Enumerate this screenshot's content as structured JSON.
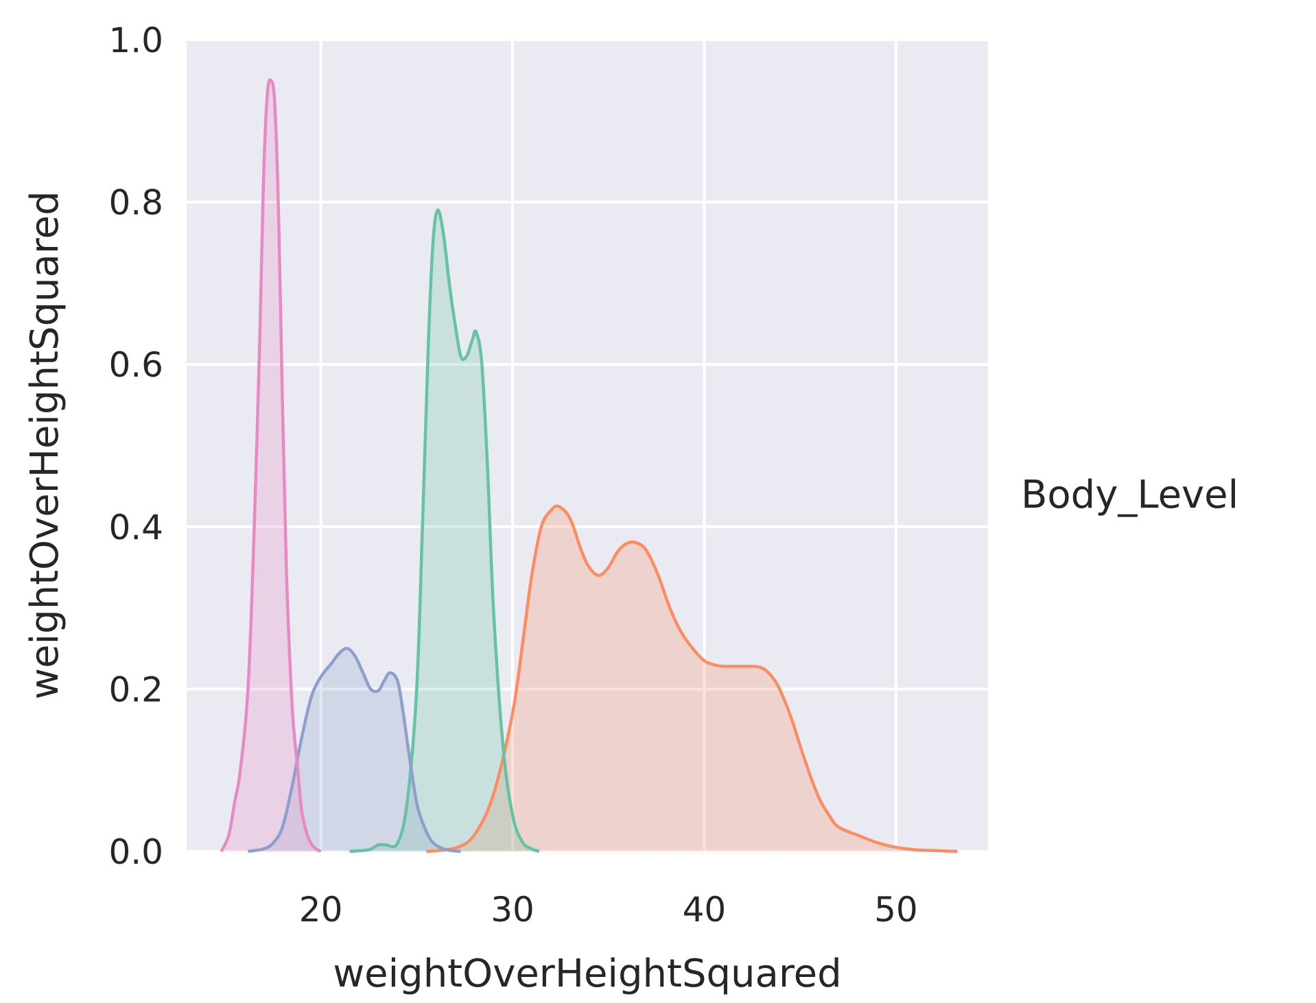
{
  "chart_data": {
    "type": "area",
    "title": "",
    "xlabel": "weightOverHeightSquared",
    "ylabel": "weightOverHeightSquared",
    "xlim": [
      13.0,
      54.8
    ],
    "ylim": [
      0,
      1.0
    ],
    "xticks": [
      20,
      30,
      40,
      50
    ],
    "yticks": [
      0.0,
      0.2,
      0.4,
      0.6,
      0.8,
      1.0
    ],
    "ytick_labels": [
      "0.0",
      "0.2",
      "0.4",
      "0.6",
      "0.8",
      "1.0"
    ],
    "grid": true,
    "legend": {
      "title": "Body_Level",
      "placement": "right"
    },
    "series": [
      {
        "color": "#fc8d62",
        "x": [
          25.5,
          27.0,
          28.0,
          29.0,
          30.0,
          30.6,
          31.0,
          31.5,
          32.0,
          32.4,
          33.0,
          33.6,
          34.0,
          34.5,
          35.0,
          35.5,
          36.0,
          36.5,
          37.0,
          37.6,
          38.2,
          38.8,
          39.4,
          40.0,
          40.5,
          41.0,
          42.0,
          43.0,
          43.7,
          44.2,
          44.6,
          45.0,
          45.5,
          46.0,
          46.5,
          47.0,
          48.0,
          49.0,
          50.0,
          51.0,
          52.0,
          53.2
        ],
        "y": [
          0.0,
          0.004,
          0.02,
          0.07,
          0.17,
          0.27,
          0.34,
          0.4,
          0.42,
          0.425,
          0.41,
          0.37,
          0.35,
          0.34,
          0.35,
          0.37,
          0.38,
          0.38,
          0.37,
          0.34,
          0.3,
          0.27,
          0.25,
          0.235,
          0.23,
          0.228,
          0.228,
          0.226,
          0.21,
          0.185,
          0.16,
          0.13,
          0.095,
          0.065,
          0.045,
          0.03,
          0.02,
          0.011,
          0.005,
          0.002,
          0.001,
          0.0
        ]
      },
      {
        "color": "#66c2a5",
        "x": [
          21.5,
          22.5,
          23.0,
          23.4,
          24.0,
          24.5,
          25.0,
          25.3,
          25.6,
          25.85,
          26.1,
          26.4,
          26.7,
          27.0,
          27.3,
          27.6,
          27.9,
          28.1,
          28.4,
          28.7,
          29.0,
          29.5,
          30.0,
          30.5,
          31.0,
          31.4
        ],
        "y": [
          0.0,
          0.002,
          0.008,
          0.008,
          0.01,
          0.06,
          0.2,
          0.4,
          0.62,
          0.75,
          0.79,
          0.76,
          0.7,
          0.65,
          0.61,
          0.61,
          0.63,
          0.64,
          0.6,
          0.47,
          0.3,
          0.13,
          0.045,
          0.012,
          0.003,
          0.0
        ]
      },
      {
        "color": "#8da0cb",
        "x": [
          16.2,
          17.0,
          17.5,
          18.0,
          18.5,
          19.0,
          19.5,
          20.0,
          20.5,
          21.0,
          21.4,
          21.8,
          22.2,
          22.6,
          23.0,
          23.3,
          23.6,
          24.0,
          24.3,
          24.6,
          25.0,
          25.4,
          25.8,
          26.3,
          26.8,
          27.3
        ],
        "y": [
          0.0,
          0.003,
          0.01,
          0.03,
          0.08,
          0.14,
          0.19,
          0.215,
          0.23,
          0.245,
          0.25,
          0.24,
          0.22,
          0.2,
          0.198,
          0.21,
          0.22,
          0.21,
          0.17,
          0.12,
          0.06,
          0.03,
          0.012,
          0.004,
          0.001,
          0.0
        ]
      },
      {
        "color": "#e78ac3",
        "x": [
          14.8,
          15.2,
          15.5,
          15.8,
          16.2,
          16.5,
          16.8,
          17.0,
          17.2,
          17.4,
          17.6,
          17.8,
          18.0,
          18.2,
          18.5,
          18.8,
          19.0,
          19.3,
          19.6,
          20.0
        ],
        "y": [
          0.0,
          0.02,
          0.06,
          0.1,
          0.2,
          0.38,
          0.62,
          0.82,
          0.93,
          0.95,
          0.92,
          0.78,
          0.55,
          0.35,
          0.18,
          0.1,
          0.05,
          0.02,
          0.006,
          0.0
        ]
      }
    ]
  }
}
